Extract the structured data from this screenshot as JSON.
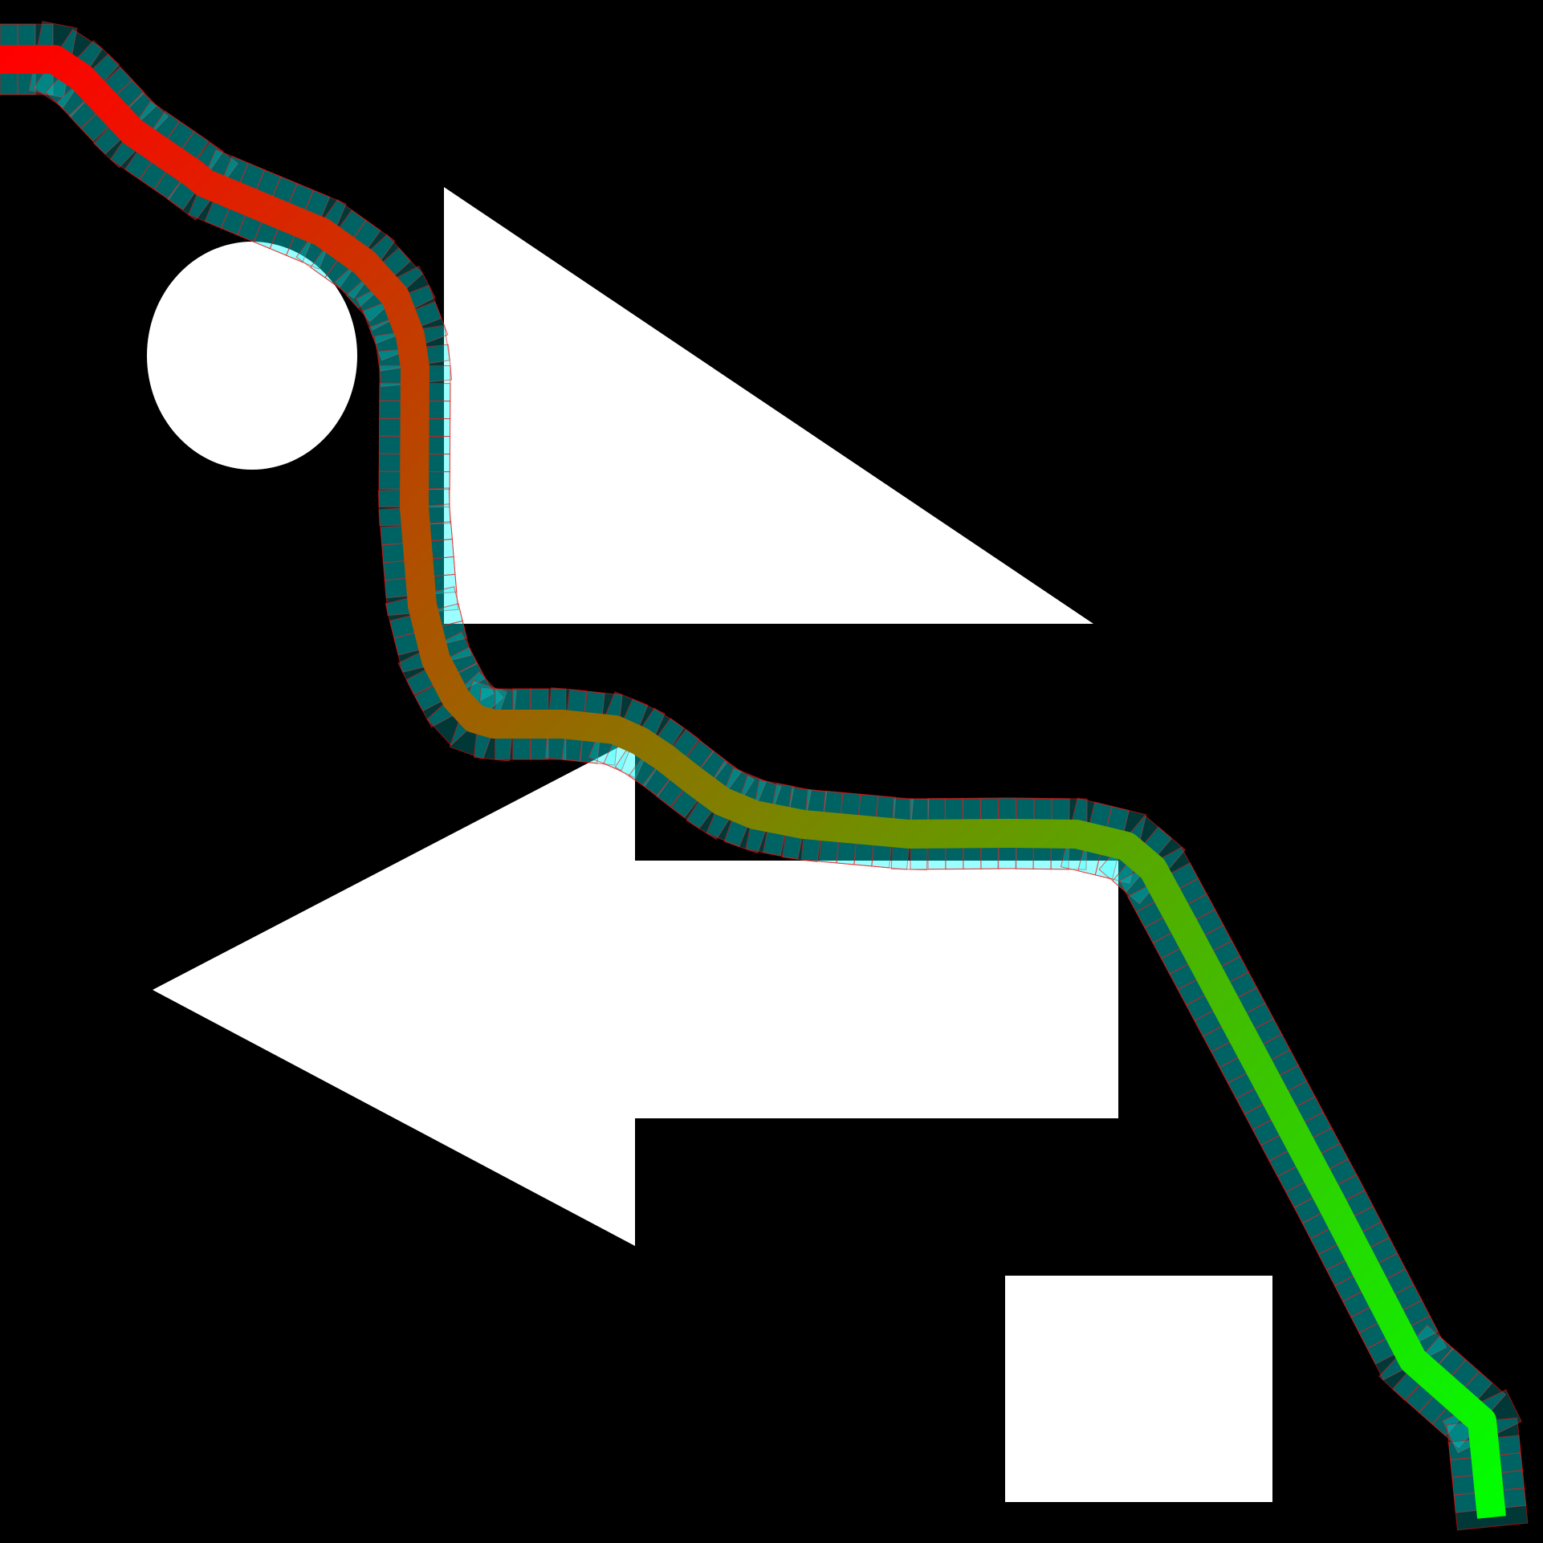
{
  "scene": {
    "background": "#000000",
    "obstacle_color": "#ffffff",
    "path_start_color": "#ff0000",
    "path_end_color": "#00ff00",
    "footprint_fill": "#00ffff",
    "footprint_outline": "#ff0000",
    "obstacles": [
      {
        "kind": "ellipse"
      },
      {
        "kind": "right-pointing triangle"
      },
      {
        "kind": "left-pointing arrow"
      },
      {
        "kind": "rectangle"
      }
    ]
  }
}
